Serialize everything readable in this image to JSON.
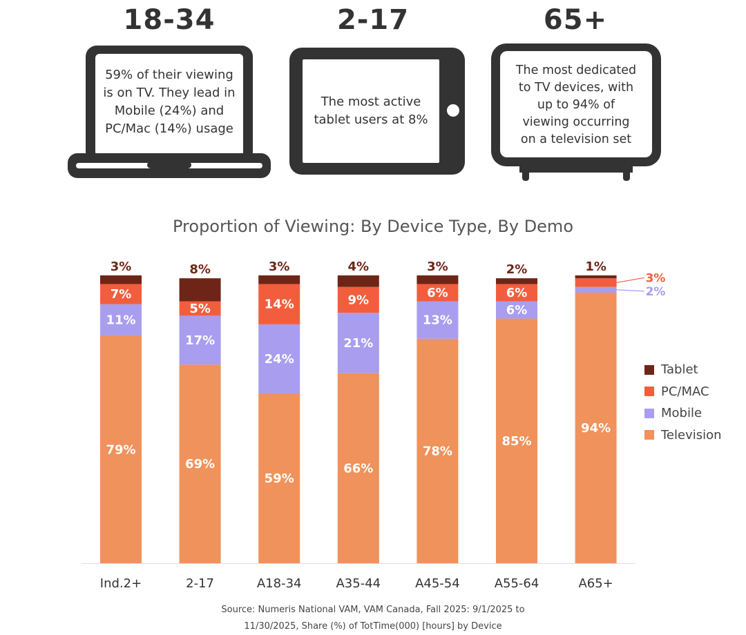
{
  "demos": [
    {
      "heading": "18-34",
      "lines": [
        "59% of their viewing",
        "is on TV. They lead in",
        "Mobile (24%) and",
        "PC/Mac (14%) usage"
      ]
    },
    {
      "heading": "2-17",
      "lines": [
        "The most active",
        "tablet users at 8%"
      ]
    },
    {
      "heading": "65+",
      "lines": [
        "The most dedicated",
        "to TV devices, with",
        "up to 94% of",
        "viewing occurring",
        "on a television set"
      ]
    }
  ],
  "icons": [
    "laptop-icon",
    "tablet-icon",
    "television-icon"
  ],
  "source_lines": [
    "Source: Numeris National VAM, VAM Canada, Fall 2025: 9/1/2025 to",
    "11/30/2025, Share (%) of TotTime(000) [hours] by Device"
  ],
  "colors": {
    "device_outline": "#333333",
    "television": "#F0925B",
    "mobile": "#A99DEF",
    "pc_mac": "#F25E3D",
    "tablet": "#6E2518",
    "label_dark": "#6E2518"
  },
  "chart_data": {
    "type": "bar",
    "stacked": true,
    "title": "Proportion of Viewing: By Device Type, By Demo",
    "categories": [
      "Ind.2+",
      "2-17",
      "A18-34",
      "A35-44",
      "A45-54",
      "A55-64",
      "A65+"
    ],
    "series": [
      {
        "name": "Television",
        "color": "#F0925B",
        "values": [
          79,
          69,
          59,
          66,
          78,
          85,
          94
        ]
      },
      {
        "name": "Mobile",
        "color": "#A99DEF",
        "values": [
          11,
          17,
          24,
          21,
          13,
          6,
          2
        ]
      },
      {
        "name": "PC/MAC",
        "color": "#F25E3D",
        "values": [
          7,
          5,
          14,
          9,
          6,
          6,
          3
        ]
      },
      {
        "name": "Tablet",
        "color": "#6E2518",
        "values": [
          3,
          8,
          3,
          4,
          3,
          2,
          1
        ]
      }
    ],
    "legend_order": [
      "Tablet",
      "PC/MAC",
      "Mobile",
      "Television"
    ],
    "legend_position": "right",
    "ylim": [
      0,
      100
    ],
    "grid": false
  }
}
